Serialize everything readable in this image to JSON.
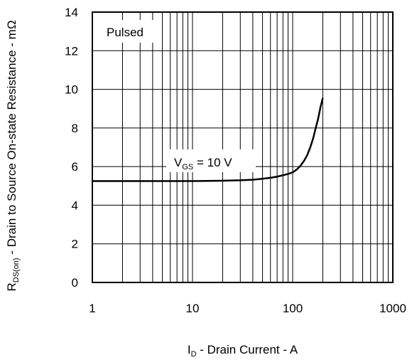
{
  "chart_data": {
    "type": "line",
    "xscale": "log",
    "xlim": [
      1,
      1000
    ],
    "ylim": [
      0,
      14
    ],
    "x_ticks": [
      1,
      10,
      100,
      1000
    ],
    "y_ticks": [
      0,
      2,
      4,
      6,
      8,
      10,
      12,
      14
    ],
    "grid": true,
    "xlabel": {
      "main": "I",
      "sub": "D",
      "rest": " - Drain Current - A"
    },
    "ylabel": {
      "main": "R",
      "sub": "DS(on)",
      "rest": " - Drain to Source On-state Resistance - mΩ"
    },
    "annotations": [
      {
        "text": "Pulsed"
      },
      {
        "main": "V",
        "sub": "GS",
        "rest": " = 10 V"
      }
    ],
    "series": [
      {
        "line_color": "#000000",
        "x": [
          1,
          2,
          5,
          10,
          20,
          30,
          40,
          50,
          60,
          70,
          80,
          90,
          100,
          110,
          120,
          130,
          140,
          150,
          160,
          170,
          180,
          190,
          200
        ],
        "y": [
          5.25,
          5.25,
          5.25,
          5.25,
          5.27,
          5.29,
          5.32,
          5.37,
          5.42,
          5.48,
          5.55,
          5.62,
          5.7,
          5.85,
          6.05,
          6.3,
          6.6,
          7.0,
          7.45,
          8.0,
          8.5,
          9.1,
          9.55
        ]
      }
    ]
  }
}
